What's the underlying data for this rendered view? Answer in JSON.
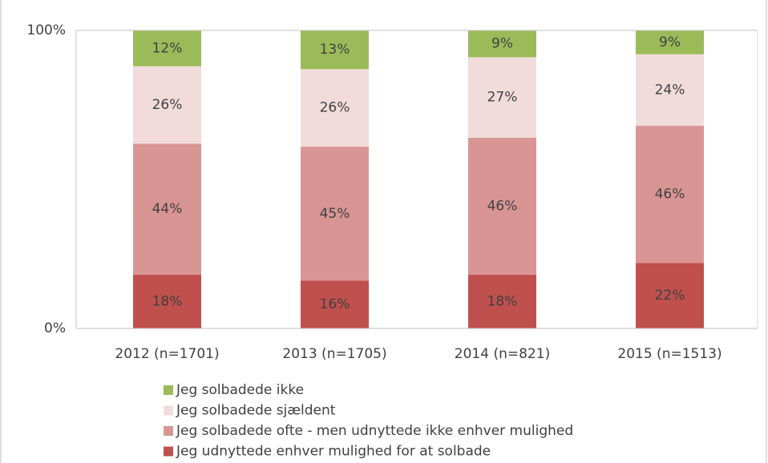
{
  "chart_data": {
    "type": "stacked_bar",
    "categories": [
      "2012 (n=1701)",
      "2013 (n=1705)",
      "2014 (n=821)",
      "2015 (n=1513)"
    ],
    "series": [
      {
        "name": "Jeg udnyttede enhver mulighed for at solbade",
        "color": "#c0504d",
        "values": [
          18,
          16,
          18,
          22
        ],
        "value_labels": [
          "18%",
          "16%",
          "18%",
          "22%"
        ]
      },
      {
        "name": "Jeg solbadede ofte - men udnyttede ikke enhver mulighed",
        "color": "#d99594",
        "values": [
          44,
          45,
          46,
          46
        ],
        "value_labels": [
          "44%",
          "45%",
          "46%",
          "46%"
        ]
      },
      {
        "name": "Jeg solbadede sjældent",
        "color": "#f2dcdb",
        "values": [
          26,
          26,
          27,
          24
        ],
        "value_labels": [
          "26%",
          "26%",
          "27%",
          "24%"
        ]
      },
      {
        "name": "Jeg solbadede ikke",
        "color": "#9bbb59",
        "values": [
          12,
          13,
          9,
          9
        ],
        "value_labels": [
          "12%",
          "13%",
          "9%",
          "9%"
        ]
      }
    ],
    "ylim": [
      0,
      100
    ],
    "yticks": [
      {
        "value": 0,
        "label": "0%"
      },
      {
        "value": 100,
        "label": "100%"
      }
    ]
  }
}
